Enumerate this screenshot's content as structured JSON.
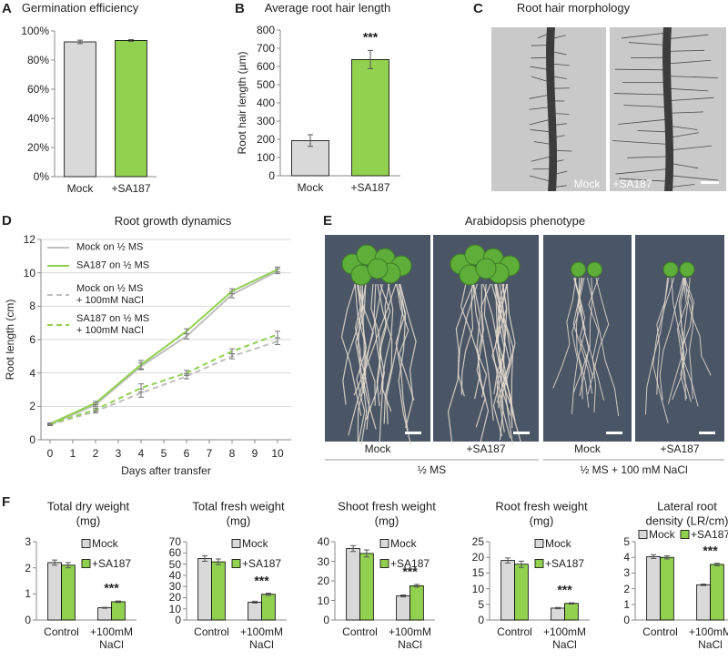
{
  "chart_data": [
    {
      "panel": "A",
      "type": "bar",
      "title": "Germination efficiency",
      "categories": [
        "Mock",
        "+SA187"
      ],
      "values": [
        92.5,
        93.5
      ],
      "errors": [
        1.2,
        0.6
      ],
      "colors": [
        "#d9d9d9",
        "#92d050"
      ],
      "ylim": [
        0,
        100
      ],
      "yticks": [
        {
          "value": 0,
          "label": "0%"
        },
        {
          "value": 20,
          "label": "20%"
        },
        {
          "value": 40,
          "label": "40%"
        },
        {
          "value": 60,
          "label": "60%"
        },
        {
          "value": 80,
          "label": "80%"
        },
        {
          "value": 100,
          "label": "100%"
        }
      ]
    },
    {
      "panel": "B",
      "type": "bar",
      "title": "Average root hair length",
      "ylabel": "Root hair length (µm)",
      "categories": [
        "Mock",
        "+SA187"
      ],
      "values": [
        193,
        638
      ],
      "errors": [
        32,
        50
      ],
      "colors": [
        "#d9d9d9",
        "#92d050"
      ],
      "significance": [
        null,
        "***"
      ],
      "ylim": [
        0,
        800
      ],
      "yticks": [
        0,
        100,
        200,
        300,
        400,
        500,
        600,
        700,
        800
      ]
    },
    {
      "panel": "D",
      "type": "line",
      "title": "Root growth dynamics",
      "xlabel": "Days after transfer",
      "ylabel": "Root length (cm)",
      "x": [
        0,
        2,
        4,
        6,
        8,
        10
      ],
      "xlim": [
        -0.4,
        10.6
      ],
      "xticks": [
        0,
        1,
        2,
        3,
        4,
        5,
        6,
        7,
        8,
        9,
        10
      ],
      "ylim": [
        0,
        12
      ],
      "yticks": [
        0,
        2,
        4,
        6,
        8,
        10,
        12
      ],
      "grid": true,
      "series": [
        {
          "name": "Mock on ½ MS",
          "color": "#bfbfbf",
          "dashed": false,
          "values": [
            0.9,
            2.1,
            4.4,
            6.2,
            8.7,
            10.1
          ],
          "errors": [
            0.05,
            0.1,
            0.2,
            0.15,
            0.2,
            0.15
          ]
        },
        {
          "name": "SA187 on ½ MS",
          "color": "#92d050",
          "dashed": false,
          "values": [
            0.95,
            2.2,
            4.5,
            6.5,
            8.9,
            10.2
          ],
          "errors": [
            0.05,
            0.1,
            0.25,
            0.15,
            0.15,
            0.15
          ]
        },
        {
          "name": "Mock on ½ MS\n+ 100mM NaCl",
          "color": "#bfbfbf",
          "dashed": true,
          "values": [
            0.9,
            1.7,
            2.8,
            3.8,
            5.0,
            5.9
          ],
          "errors": [
            0.05,
            0.1,
            0.25,
            0.15,
            0.15,
            0.2
          ]
        },
        {
          "name": "SA187 on ½ MS\n+ 100mM NaCl",
          "color": "#92d050",
          "dashed": true,
          "values": [
            0.95,
            1.8,
            3.1,
            4.0,
            5.3,
            6.3
          ],
          "errors": [
            0.05,
            0.1,
            0.25,
            0.15,
            0.15,
            0.2
          ]
        }
      ]
    },
    {
      "panel": "F",
      "type": "bar",
      "title": "Total dry weight\n(mg)",
      "legend": "upper right",
      "categories": [
        "Control",
        "+100mM\nNaCl"
      ],
      "significance": [
        null,
        "***"
      ],
      "ylim": [
        0,
        3
      ],
      "yticks": [
        0,
        1,
        2,
        3
      ],
      "series": [
        {
          "name": "Mock",
          "color": "#d9d9d9",
          "values": [
            2.2,
            0.47
          ],
          "errors": [
            0.1,
            0.02
          ]
        },
        {
          "name": "+SA187",
          "color": "#92d050",
          "values": [
            2.1,
            0.7
          ],
          "errors": [
            0.1,
            0.03
          ]
        }
      ]
    },
    {
      "type": "bar",
      "title": "Total fresh weight\n(mg)",
      "legend": "upper right",
      "categories": [
        "Control",
        "+100mM\nNaCl"
      ],
      "significance": [
        null,
        "***"
      ],
      "ylim": [
        0,
        70
      ],
      "yticks": [
        0,
        10,
        20,
        30,
        40,
        50,
        60,
        70
      ],
      "series": [
        {
          "name": "Mock",
          "color": "#d9d9d9",
          "values": [
            55,
            16
          ],
          "errors": [
            2.5,
            0.8
          ]
        },
        {
          "name": "+SA187",
          "color": "#92d050",
          "values": [
            52,
            23
          ],
          "errors": [
            2.5,
            1
          ]
        }
      ]
    },
    {
      "type": "bar",
      "title": "Shoot fresh weight\n(mg)",
      "legend": "upper right",
      "categories": [
        "Control",
        "+100mM\nNaCl"
      ],
      "significance": [
        null,
        "***"
      ],
      "ylim": [
        0,
        40
      ],
      "yticks": [
        0,
        10,
        20,
        30,
        40
      ],
      "series": [
        {
          "name": "Mock",
          "color": "#d9d9d9",
          "values": [
            36.5,
            12.3
          ],
          "errors": [
            1.5,
            0.5
          ]
        },
        {
          "name": "+SA187",
          "color": "#92d050",
          "values": [
            34,
            17.5
          ],
          "errors": [
            1.8,
            0.7
          ]
        }
      ]
    },
    {
      "type": "bar",
      "title": "Root fresh weight\n(mg)",
      "legend": "upper right",
      "categories": [
        "Control",
        "+100mM\nNaCl"
      ],
      "significance": [
        null,
        "***"
      ],
      "ylim": [
        0,
        25
      ],
      "yticks": [
        0,
        5,
        10,
        15,
        20,
        25
      ],
      "series": [
        {
          "name": "Mock",
          "color": "#d9d9d9",
          "values": [
            19,
            3.8
          ],
          "errors": [
            0.8,
            0.2
          ]
        },
        {
          "name": "+SA187",
          "color": "#92d050",
          "values": [
            17.8,
            5.3
          ],
          "errors": [
            1,
            0.2
          ]
        }
      ]
    },
    {
      "type": "bar",
      "title": "Lateral root\ndensity (LR/cm)",
      "legend": "top",
      "categories": [
        "Control",
        "+100mM\nNaCl"
      ],
      "significance": [
        null,
        "***"
      ],
      "ylim": [
        0,
        5
      ],
      "yticks": [
        0,
        1,
        2,
        3,
        4,
        5
      ],
      "series": [
        {
          "name": "Mock",
          "color": "#d9d9d9",
          "values": [
            4.05,
            2.25
          ],
          "errors": [
            0.12,
            0.05
          ]
        },
        {
          "name": "+SA187",
          "color": "#92d050",
          "values": [
            4.0,
            3.55
          ],
          "errors": [
            0.1,
            0.08
          ]
        }
      ]
    }
  ],
  "images": [
    {
      "panel": "C",
      "title": "Root hair morphology",
      "labels": [
        "Mock",
        "+SA187"
      ]
    },
    {
      "panel": "E",
      "title": "Arabidopsis phenotype",
      "labels": [
        "Mock",
        "+SA187",
        "Mock",
        "+SA187"
      ],
      "groups": [
        "½ MS",
        "½ MS + 100 mM NaCl"
      ]
    }
  ]
}
